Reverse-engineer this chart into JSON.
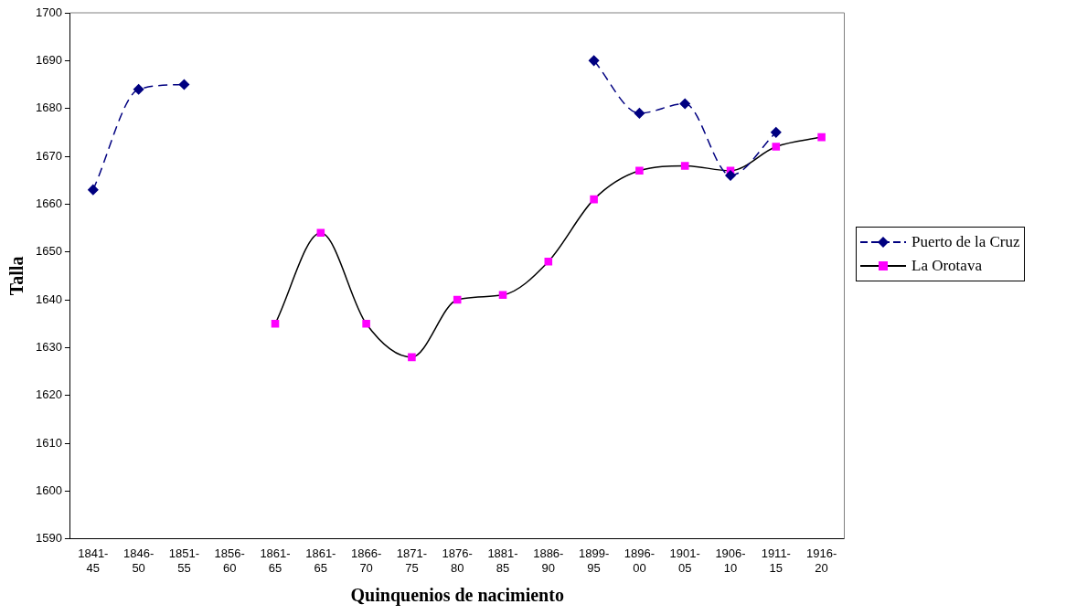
{
  "chart_data": {
    "type": "line",
    "xlabel": "Quinquenios de nacimiento",
    "ylabel": "Talla",
    "categories": [
      "1841-45",
      "1846-50",
      "1851-55",
      "1856-60",
      "1861-65",
      "1861-65",
      "1866-70",
      "1871-75",
      "1876-80",
      "1881-85",
      "1886-90",
      "1899-95",
      "1896-00",
      "1901-05",
      "1906-10",
      "1911-15",
      "1916-20"
    ],
    "series": [
      {
        "name": "Puerto de la Cruz",
        "color": "#000080",
        "marker": "diamond",
        "line_style": "dashed",
        "values": [
          1663,
          1684,
          1685,
          null,
          null,
          null,
          null,
          null,
          null,
          null,
          null,
          1690,
          1679,
          1681,
          1666,
          1675,
          null
        ]
      },
      {
        "name": "La Orotava",
        "color": "#ff00ff",
        "marker": "square",
        "line_style": "solid",
        "values": [
          null,
          null,
          null,
          null,
          1635,
          1654,
          1635,
          1628,
          1640,
          1641,
          1648,
          1661,
          1667,
          1668,
          1667,
          1672,
          1674
        ]
      }
    ],
    "ylim": [
      1590,
      1700
    ],
    "yticks": [
      1590,
      1600,
      1610,
      1620,
      1630,
      1640,
      1650,
      1660,
      1670,
      1680,
      1690,
      1700
    ],
    "grid": false,
    "legend": "right"
  }
}
